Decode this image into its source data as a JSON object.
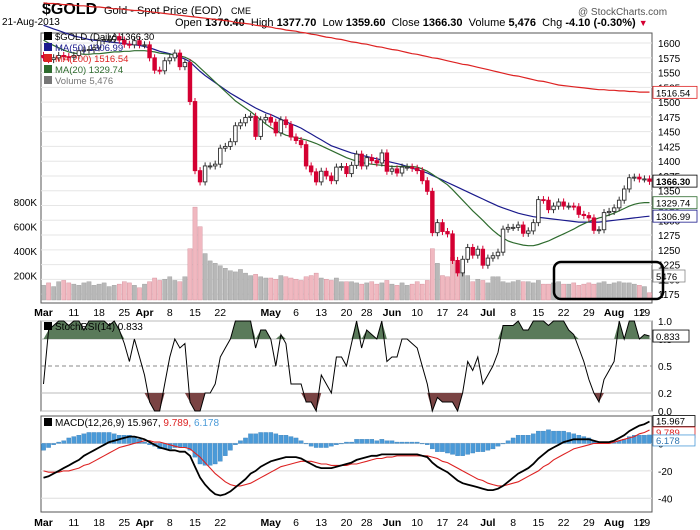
{
  "header": {
    "symbol": "$GOLD",
    "description": "Gold - Spot Price (EOD)",
    "exchange": "CME",
    "date": "21-Aug-2013",
    "open_label": "Open",
    "open": "1370.40",
    "high_label": "High",
    "high": "1377.70",
    "low_label": "Low",
    "low": "1359.60",
    "close_label": "Close",
    "close": "1366.30",
    "volume_label": "Volume",
    "volume": "5,476",
    "chg_label": "Chg",
    "chg": "-4.10 (-0.30%)",
    "watermark": "@ StockCharts.com"
  },
  "colors": {
    "up": "#2f2f2f",
    "down": "#d40032",
    "ma50": "#1a1a8c",
    "ma200": "#dd2222",
    "ma20": "#2e6b2e",
    "vol_up": "#b8b8b8",
    "vol_down": "#f0b8c0",
    "rsi_fill": "#5a7a5a",
    "rsi_low_fill": "#7a4444",
    "macd_hist": "#4a9ad8",
    "macd_sig": "#dd2222",
    "macd_line": "#000000"
  },
  "price_panel": {
    "legend": [
      {
        "label": "$GOLD (Daily) 1366.30",
        "color": "#000000"
      },
      {
        "label": "MA(50) 1306.99",
        "color": "#1a1a8c"
      },
      {
        "label": "MA(200) 1516.54",
        "color": "#dd2222"
      },
      {
        "label": "MA(20) 1329.74",
        "color": "#2e6b2e"
      },
      {
        "label": "Volume 5,476",
        "color": "#777777"
      }
    ],
    "y_ticks": [
      "1600",
      "1575",
      "1550",
      "1525",
      "1500",
      "1475",
      "1450",
      "1425",
      "1400",
      "1375",
      "1350",
      "1325",
      "1300",
      "1275",
      "1250",
      "1225",
      "1200",
      "1175"
    ],
    "vol_ticks": [
      "800K",
      "600K",
      "400K",
      "200K"
    ],
    "tags": [
      "1516.54",
      "1366.30",
      "1329.74",
      "1306.99",
      "5476"
    ]
  },
  "x_axis_top": [
    "Mar",
    "11",
    "18",
    "25",
    "Apr",
    "8",
    "15",
    "22",
    "May",
    "6",
    "13",
    "20",
    "28",
    "Jun",
    "10",
    "17",
    "24",
    "Jul",
    "8",
    "15",
    "22",
    "29",
    "Aug",
    "12",
    "19"
  ],
  "x_axis_bottom": [
    "Mar",
    "11",
    "18",
    "25",
    "Apr",
    "8",
    "15",
    "22",
    "May",
    "6",
    "13",
    "20",
    "28",
    "Jun",
    "10",
    "17",
    "24",
    "Jul",
    "8",
    "15",
    "22",
    "29",
    "Aug",
    "12",
    "19"
  ],
  "rsi_panel": {
    "label": "StochRSI(14) 0.833",
    "y_ticks": [
      "1.0",
      "0.8",
      "0.5",
      "0.2",
      "0.0"
    ],
    "tag": "0.833"
  },
  "macd_panel": {
    "label": "MACD(12,26,9)",
    "v1": "15.967,",
    "v2": "9.789,",
    "v3": "6.178",
    "y_ticks": [
      "0",
      "-20",
      "-40"
    ],
    "tags": [
      "15.967",
      "9.789",
      "6.178"
    ]
  },
  "chart_data": {
    "type": "candlestick",
    "x": [
      "2013-03-01",
      "2013-03-04",
      "2013-03-05",
      "2013-03-06",
      "2013-03-07",
      "2013-03-08",
      "2013-03-11",
      "2013-03-12",
      "2013-03-13",
      "2013-03-14",
      "2013-03-15",
      "2013-03-18",
      "2013-03-19",
      "2013-03-20",
      "2013-03-21",
      "2013-03-22",
      "2013-03-25",
      "2013-03-26",
      "2013-03-27",
      "2013-03-28",
      "2013-04-01",
      "2013-04-02",
      "2013-04-03",
      "2013-04-04",
      "2013-04-05",
      "2013-04-08",
      "2013-04-09",
      "2013-04-10",
      "2013-04-11",
      "2013-04-12",
      "2013-04-15",
      "2013-04-16",
      "2013-04-17",
      "2013-04-18",
      "2013-04-19",
      "2013-04-22",
      "2013-04-23",
      "2013-04-24",
      "2013-04-25",
      "2013-04-26",
      "2013-04-29",
      "2013-04-30",
      "2013-05-01",
      "2013-05-02",
      "2013-05-03",
      "2013-05-06",
      "2013-05-07",
      "2013-05-08",
      "2013-05-09",
      "2013-05-10",
      "2013-05-13",
      "2013-05-14",
      "2013-05-15",
      "2013-05-16",
      "2013-05-17",
      "2013-05-20",
      "2013-05-21",
      "2013-05-22",
      "2013-05-23",
      "2013-05-24",
      "2013-05-28",
      "2013-05-29",
      "2013-05-30",
      "2013-05-31",
      "2013-06-03",
      "2013-06-04",
      "2013-06-05",
      "2013-06-06",
      "2013-06-07",
      "2013-06-10",
      "2013-06-11",
      "2013-06-12",
      "2013-06-13",
      "2013-06-14",
      "2013-06-17",
      "2013-06-18",
      "2013-06-19",
      "2013-06-20",
      "2013-06-21",
      "2013-06-24",
      "2013-06-25",
      "2013-06-26",
      "2013-06-27",
      "2013-06-28",
      "2013-07-01",
      "2013-07-02",
      "2013-07-03",
      "2013-07-05",
      "2013-07-08",
      "2013-07-09",
      "2013-07-10",
      "2013-07-11",
      "2013-07-12",
      "2013-07-15",
      "2013-07-16",
      "2013-07-17",
      "2013-07-18",
      "2013-07-19",
      "2013-07-22",
      "2013-07-23",
      "2013-07-24",
      "2013-07-25",
      "2013-07-26",
      "2013-07-29",
      "2013-07-30",
      "2013-07-31",
      "2013-08-01",
      "2013-08-02",
      "2013-08-05",
      "2013-08-06",
      "2013-08-07",
      "2013-08-08",
      "2013-08-09",
      "2013-08-12",
      "2013-08-13",
      "2013-08-14",
      "2013-08-15",
      "2013-08-16",
      "2013-08-19",
      "2013-08-20",
      "2013-08-21"
    ],
    "close": [
      1575,
      1572,
      1575,
      1579,
      1577,
      1576,
      1579,
      1587,
      1588,
      1589,
      1592,
      1604,
      1606,
      1606,
      1611,
      1605,
      1598,
      1597,
      1604,
      1597,
      1597,
      1575,
      1554,
      1553,
      1570,
      1575,
      1583,
      1560,
      1567,
      1501,
      1384,
      1365,
      1392,
      1392,
      1395,
      1422,
      1425,
      1433,
      1460,
      1465,
      1474,
      1476,
      1442,
      1470,
      1474,
      1466,
      1448,
      1470,
      1462,
      1441,
      1435,
      1428,
      1392,
      1382,
      1365,
      1383,
      1375,
      1367,
      1390,
      1391,
      1379,
      1393,
      1412,
      1392,
      1406,
      1401,
      1397,
      1414,
      1383,
      1387,
      1380,
      1390,
      1390,
      1388,
      1384,
      1367,
      1349,
      1279,
      1296,
      1281,
      1277,
      1232,
      1211,
      1234,
      1254,
      1241,
      1251,
      1224,
      1236,
      1240,
      1246,
      1285,
      1288,
      1288,
      1292,
      1278,
      1282,
      1296,
      1335,
      1334,
      1318,
      1324,
      1331,
      1324,
      1324,
      1323,
      1310,
      1308,
      1304,
      1283,
      1284,
      1313,
      1315,
      1321,
      1334,
      1353,
      1372,
      1373,
      1370,
      1370,
      1366
    ],
    "ma50": [
      1630,
      1627,
      1624,
      1621,
      1618,
      1615,
      1612,
      1610,
      1608,
      1606,
      1605,
      1604,
      1603,
      1602,
      1601,
      1600,
      1599,
      1598,
      1597,
      1596,
      1594,
      1592,
      1589,
      1586,
      1584,
      1582,
      1579,
      1576,
      1573,
      1568,
      1560,
      1552,
      1545,
      1539,
      1533,
      1527,
      1521,
      1515,
      1510,
      1505,
      1500,
      1495,
      1490,
      1486,
      1482,
      1479,
      1475,
      1471,
      1467,
      1463,
      1460,
      1456,
      1451,
      1446,
      1441,
      1436,
      1431,
      1426,
      1423,
      1420,
      1417,
      1414,
      1412,
      1410,
      1408,
      1406,
      1404,
      1402,
      1400,
      1398,
      1396,
      1394,
      1391,
      1388,
      1386,
      1383,
      1380,
      1376,
      1372,
      1368,
      1364,
      1360,
      1356,
      1352,
      1348,
      1344,
      1340,
      1336,
      1332,
      1328,
      1324,
      1321,
      1318,
      1315,
      1312,
      1310,
      1308,
      1306,
      1305,
      1304,
      1303,
      1302,
      1301,
      1300,
      1299,
      1298,
      1297,
      1297,
      1297,
      1297,
      1297,
      1298,
      1299,
      1300,
      1301,
      1302,
      1303,
      1304,
      1305,
      1306,
      1307
    ],
    "ma200": [
      1668,
      1667,
      1667,
      1666,
      1665,
      1665,
      1664,
      1663,
      1663,
      1662,
      1661,
      1661,
      1660,
      1659,
      1658,
      1658,
      1657,
      1656,
      1655,
      1655,
      1654,
      1653,
      1652,
      1651,
      1650,
      1649,
      1648,
      1647,
      1646,
      1645,
      1644,
      1643,
      1642,
      1641,
      1640,
      1639,
      1638,
      1637,
      1635,
      1634,
      1633,
      1632,
      1630,
      1629,
      1628,
      1627,
      1625,
      1624,
      1622,
      1621,
      1620,
      1618,
      1617,
      1615,
      1614,
      1612,
      1610,
      1609,
      1607,
      1606,
      1604,
      1602,
      1601,
      1599,
      1598,
      1596,
      1594,
      1593,
      1591,
      1589,
      1588,
      1586,
      1584,
      1582,
      1581,
      1579,
      1577,
      1575,
      1574,
      1572,
      1570,
      1568,
      1566,
      1564,
      1563,
      1561,
      1559,
      1557,
      1555,
      1553,
      1551,
      1549,
      1547,
      1545,
      1544,
      1542,
      1540,
      1538,
      1536,
      1535,
      1533,
      1531,
      1529,
      1528,
      1527,
      1526,
      1525,
      1524,
      1523,
      1522,
      1521,
      1521,
      1520,
      1520,
      1519,
      1519,
      1518,
      1518,
      1517,
      1517,
      1517
    ],
    "ma20": [
      1605,
      1600,
      1596,
      1592,
      1588,
      1585,
      1583,
      1582,
      1581,
      1581,
      1582,
      1582,
      1583,
      1584,
      1585,
      1585,
      1586,
      1586,
      1587,
      1587,
      1587,
      1586,
      1585,
      1583,
      1582,
      1581,
      1580,
      1578,
      1576,
      1572,
      1566,
      1558,
      1550,
      1542,
      1534,
      1526,
      1518,
      1510,
      1502,
      1496,
      1490,
      1484,
      1477,
      1470,
      1463,
      1457,
      1452,
      1448,
      1444,
      1442,
      1440,
      1438,
      1436,
      1433,
      1430,
      1426,
      1422,
      1418,
      1414,
      1410,
      1406,
      1403,
      1400,
      1398,
      1396,
      1395,
      1394,
      1393,
      1392,
      1391,
      1391,
      1391,
      1391,
      1391,
      1390,
      1387,
      1383,
      1378,
      1372,
      1366,
      1360,
      1352,
      1343,
      1334,
      1325,
      1316,
      1308,
      1300,
      1291,
      1283,
      1276,
      1270,
      1265,
      1262,
      1260,
      1258,
      1257,
      1257,
      1259,
      1262,
      1265,
      1269,
      1273,
      1277,
      1281,
      1285,
      1290,
      1294,
      1298,
      1301,
      1304,
      1306,
      1309,
      1312,
      1316,
      1320,
      1324,
      1327,
      1329,
      1330,
      1330
    ],
    "volume": [
      120,
      140,
      110,
      150,
      160,
      140,
      130,
      120,
      140,
      150,
      120,
      130,
      140,
      110,
      120,
      130,
      150,
      140,
      120,
      100,
      130,
      150,
      180,
      160,
      170,
      190,
      160,
      150,
      190,
      420,
      760,
      600,
      380,
      320,
      300,
      280,
      260,
      240,
      230,
      250,
      220,
      200,
      210,
      190,
      180,
      180,
      170,
      200,
      190,
      180,
      170,
      160,
      190,
      200,
      220,
      180,
      170,
      160,
      180,
      150,
      150,
      150,
      140,
      130,
      140,
      150,
      130,
      140,
      160,
      130,
      120,
      140,
      120,
      130,
      150,
      130,
      160,
      420,
      300,
      200,
      190,
      350,
      300,
      230,
      200,
      150,
      170,
      160,
      140,
      190,
      190,
      150,
      140,
      150,
      160,
      150,
      150,
      140,
      160,
      130,
      130,
      140,
      150,
      130,
      130,
      140,
      120,
      130,
      140,
      130,
      140,
      150,
      130,
      140,
      150,
      140,
      140,
      130,
      120,
      110,
      60
    ],
    "stoch_rsi": [
      0.3,
      0.9,
      0.95,
      1,
      1,
      0.95,
      1,
      1,
      0.9,
      1,
      1,
      1,
      1,
      0.95,
      1,
      0.9,
      0.75,
      0.55,
      0.8,
      0.6,
      0.4,
      0.1,
      0,
      0,
      0.3,
      0.6,
      0.8,
      0.7,
      0.75,
      0.1,
      0,
      0,
      0.2,
      0.2,
      0.3,
      0.6,
      0.7,
      0.8,
      1,
      1,
      1,
      1,
      0.7,
      0.9,
      0.9,
      0.8,
      0.5,
      0.85,
      0.75,
      0.3,
      0.3,
      0.3,
      0.1,
      0.1,
      0,
      0.4,
      0.3,
      0.2,
      0.6,
      0.6,
      0.5,
      0.75,
      1,
      0.7,
      0.9,
      0.85,
      0.8,
      1,
      0.55,
      0.6,
      0.6,
      0.8,
      0.8,
      0.75,
      0.7,
      0.5,
      0.3,
      0,
      0.15,
      0.1,
      0.1,
      0.1,
      0,
      0.2,
      0.55,
      0.45,
      0.6,
      0.3,
      0.4,
      0.5,
      0.65,
      0.95,
      0.95,
      0.95,
      1,
      0.9,
      0.9,
      1,
      1,
      1,
      0.95,
      1,
      1,
      1,
      0.9,
      0.85,
      0.7,
      0.55,
      0.35,
      0.2,
      0.1,
      0.35,
      0.45,
      0.55,
      1,
      0.8,
      1,
      1,
      0.8,
      0.85,
      0.833
    ],
    "macd": [
      -25,
      -24,
      -22,
      -20,
      -18,
      -16,
      -14,
      -12,
      -9,
      -7,
      -5,
      -3,
      -1,
      1,
      2,
      3,
      4,
      5,
      5,
      4,
      3,
      1,
      -1,
      -3,
      -4,
      -5,
      -5,
      -6,
      -6,
      -9,
      -17,
      -25,
      -30,
      -34,
      -37,
      -38,
      -37,
      -35,
      -32,
      -29,
      -26,
      -22,
      -20,
      -17,
      -15,
      -13,
      -12,
      -11,
      -10,
      -10,
      -10,
      -11,
      -13,
      -15,
      -17,
      -18,
      -18,
      -18,
      -17,
      -16,
      -15,
      -14,
      -12,
      -11,
      -10,
      -9,
      -9,
      -8,
      -8,
      -8,
      -8,
      -8,
      -8,
      -8,
      -8,
      -9,
      -10,
      -14,
      -17,
      -19,
      -21,
      -24,
      -27,
      -29,
      -30,
      -31,
      -32,
      -33,
      -34,
      -34,
      -33,
      -31,
      -28,
      -25,
      -22,
      -20,
      -18,
      -15,
      -11,
      -8,
      -5,
      -3,
      -1,
      1,
      2,
      3,
      3,
      3,
      3,
      2,
      1,
      1,
      1,
      2,
      4,
      6,
      9,
      11,
      13,
      14,
      16
    ],
    "macd_signal": [
      -20,
      -21,
      -21,
      -21,
      -20,
      -20,
      -19,
      -18,
      -16,
      -15,
      -13,
      -11,
      -9,
      -7,
      -5,
      -3,
      -2,
      -1,
      0,
      1,
      2,
      2,
      1,
      1,
      0,
      -1,
      -2,
      -3,
      -3,
      -4,
      -7,
      -10,
      -14,
      -18,
      -22,
      -25,
      -28,
      -30,
      -31,
      -31,
      -30,
      -29,
      -27,
      -25,
      -23,
      -21,
      -19,
      -17,
      -16,
      -15,
      -14,
      -13,
      -13,
      -13,
      -14,
      -15,
      -15,
      -16,
      -16,
      -16,
      -16,
      -15,
      -15,
      -14,
      -13,
      -12,
      -11,
      -11,
      -10,
      -10,
      -9,
      -9,
      -9,
      -9,
      -9,
      -9,
      -9,
      -10,
      -11,
      -13,
      -14,
      -16,
      -18,
      -20,
      -22,
      -24,
      -26,
      -27,
      -29,
      -30,
      -31,
      -31,
      -30,
      -29,
      -28,
      -26,
      -24,
      -22,
      -20,
      -17,
      -15,
      -12,
      -10,
      -8,
      -6,
      -4,
      -3,
      -2,
      -1,
      0,
      0,
      0,
      0,
      1,
      2,
      3,
      4,
      5,
      7,
      8,
      9.8
    ]
  }
}
